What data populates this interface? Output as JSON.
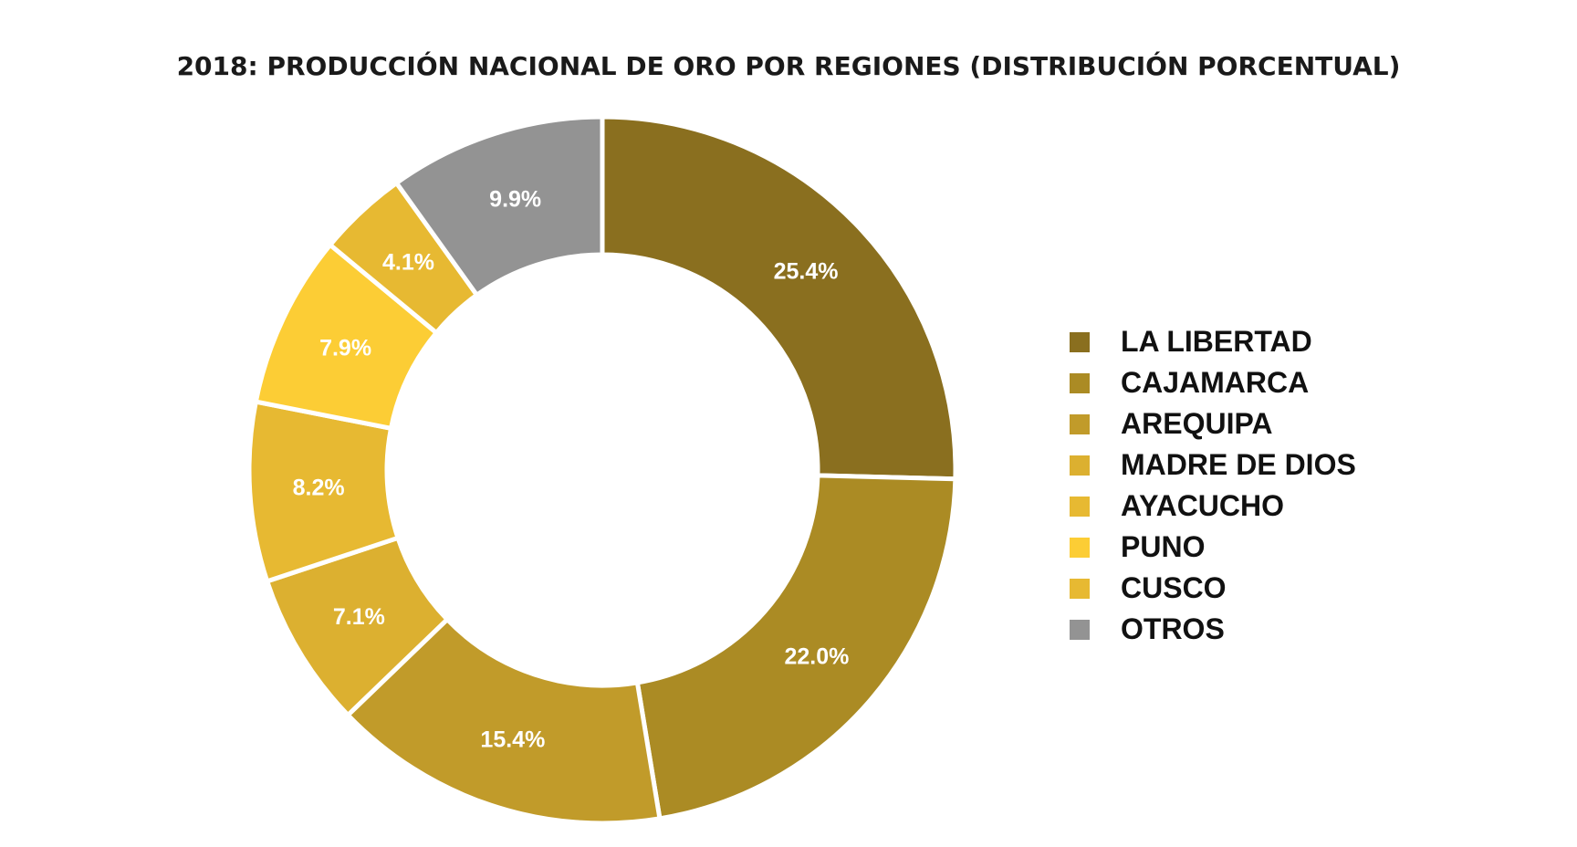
{
  "chart_data": {
    "type": "pie",
    "subtype": "donut",
    "title": "2018: PRODUCCIÓN NACIONAL DE ORO POR REGIONES (DISTRIBUCIÓN PORCENTUAL)",
    "legend_position": "right",
    "categories": [
      "LA LIBERTAD",
      "CAJAMARCA",
      "AREQUIPA",
      "MADRE DE DIOS",
      "AYACUCHO",
      "PUNO",
      "CUSCO",
      "OTROS"
    ],
    "values": [
      25.4,
      22.0,
      15.4,
      7.1,
      8.2,
      7.9,
      4.1,
      9.9
    ],
    "data_labels": [
      "25.4%",
      "22.0%",
      "15.4%",
      "7.1%",
      "8.2%",
      "7.9%",
      "4.1%",
      "9.9%"
    ],
    "colors": [
      "#8a6f1f",
      "#ab8b24",
      "#c19b2a",
      "#dcb030",
      "#e7b932",
      "#fccd35",
      "#e7b932",
      "#939393"
    ]
  }
}
